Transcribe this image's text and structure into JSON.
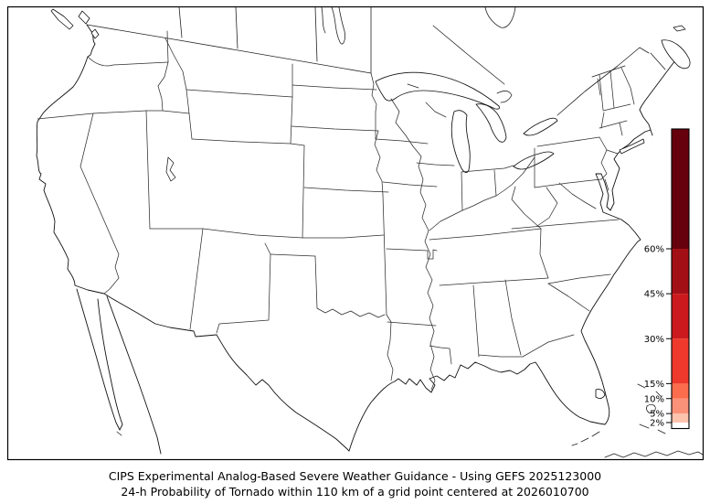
{
  "title": {
    "line1": "CIPS Experimental Analog-Based Severe Weather Guidance - Using GEFS 2025123000",
    "line2": "24-h Probability of Tornado within 110 km of a grid point centered at 2026010700"
  },
  "map": {
    "region": "Continental United States with state borders",
    "background_color": "#ffffff",
    "frame_color": "#000000",
    "boundary_color": "#2e2e2e"
  },
  "colorbar": {
    "unit": "%",
    "range_percent": [
      0,
      100
    ],
    "ticks": [
      2,
      5,
      10,
      15,
      30,
      45,
      60
    ],
    "tick_labels": [
      "2%",
      "5%",
      "10%",
      "15%",
      "30%",
      "45%",
      "60%"
    ],
    "segments": [
      {
        "from": 0,
        "to": 2,
        "color": "#ffffff"
      },
      {
        "from": 2,
        "to": 5,
        "color": "#fcc3ad"
      },
      {
        "from": 5,
        "to": 10,
        "color": "#fa9179"
      },
      {
        "from": 10,
        "to": 15,
        "color": "#fb6d4c"
      },
      {
        "from": 15,
        "to": 30,
        "color": "#ee3a2c"
      },
      {
        "from": 30,
        "to": 45,
        "color": "#cb1a1d"
      },
      {
        "from": 45,
        "to": 60,
        "color": "#a21016"
      },
      {
        "from": 60,
        "to": 100,
        "color": "#67000d"
      }
    ],
    "outline_color": "#000000"
  },
  "chart_data": {
    "type": "heatmap",
    "title": "CIPS Experimental Analog-Based Severe Weather Guidance - Using GEFS 2025123000",
    "subtitle": "24-h Probability of Tornado within 110 km of a grid point centered at 2026010700",
    "field": "24-h tornado probability (%)",
    "colorbar_ticks_percent": [
      2,
      5,
      10,
      15,
      30,
      45,
      60
    ],
    "colorbar_range_percent": [
      0,
      100
    ],
    "legend_position": "right",
    "shaded_regions": []
  }
}
